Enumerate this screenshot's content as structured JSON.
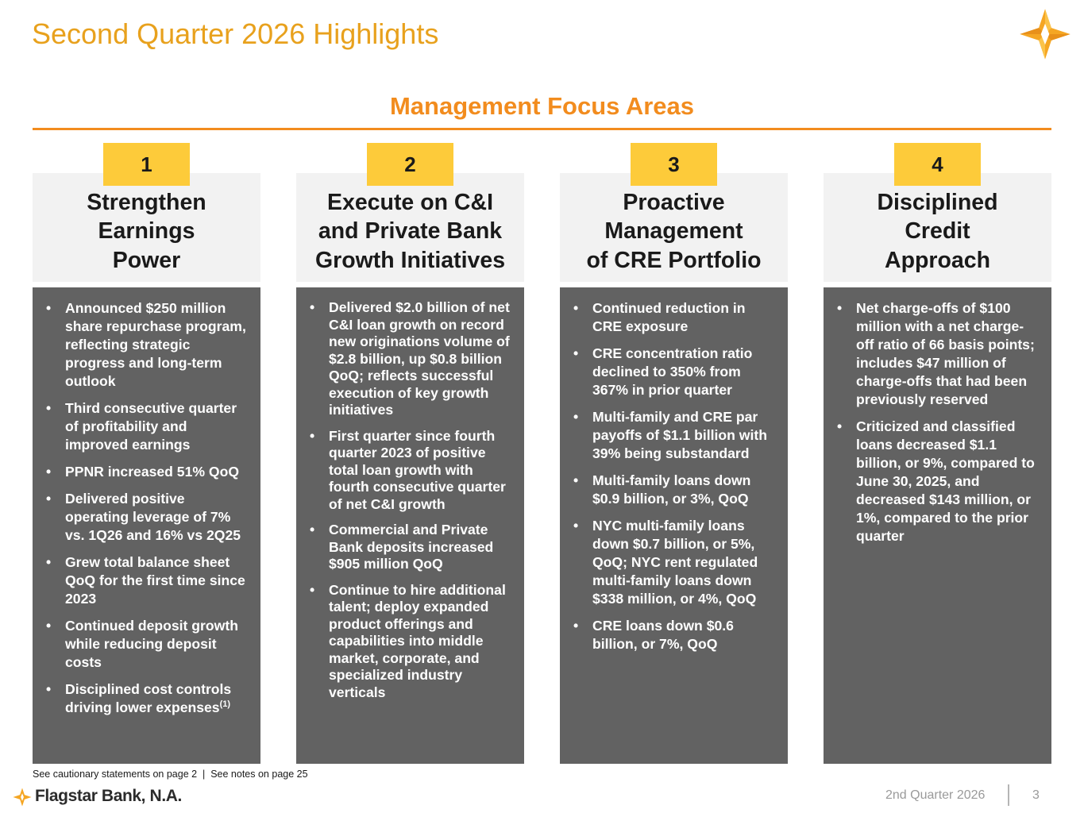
{
  "header": {
    "title": "Second Quarter 2026 Highlights"
  },
  "section": {
    "title": "Management Focus Areas"
  },
  "columns": [
    {
      "number": "1",
      "heading": "Strengthen\nEarnings\nPower",
      "bullets": [
        "Announced $250 million share repurchase program, reflecting strategic progress and long-term outlook",
        "Third consecutive quarter of profitability and improved earnings",
        "PPNR increased 51% QoQ",
        "Delivered positive operating leverage of 7% vs. 1Q26 and 16% vs 2Q25",
        "Grew total balance sheet QoQ for the first time since 2023",
        "Continued deposit growth while reducing deposit costs",
        "Disciplined cost controls driving lower expenses"
      ],
      "last_bullet_footnote": "(1)"
    },
    {
      "number": "2",
      "heading": "Execute on C&I\nand Private Bank\nGrowth Initiatives",
      "bullets": [
        "Delivered $2.0 billion of net C&I loan growth on record new originations volume of $2.8 billion, up $0.8 billion QoQ; reflects successful execution of key growth initiatives",
        "First quarter since fourth quarter 2023 of positive total loan growth with fourth consecutive quarter of net C&I growth",
        "Commercial and Private Bank deposits increased $905 million QoQ",
        "Continue to hire additional talent; deploy expanded product offerings and capabilities into middle market, corporate, and specialized industry verticals"
      ]
    },
    {
      "number": "3",
      "heading": "Proactive\nManagement\nof CRE Portfolio",
      "bullets": [
        "Continued reduction in CRE exposure",
        "CRE concentration ratio declined to 350% from 367% in prior quarter",
        "Multi-family and CRE par payoffs of $1.1 billion with 39% being substandard",
        "Multi-family loans down $0.9 billion, or 3%, QoQ",
        "NYC multi-family loans down $0.7 billion, or 5%, QoQ; NYC rent regulated multi-family loans down $338 million, or 4%, QoQ",
        "CRE loans down $0.6 billion, or 7%, QoQ"
      ]
    },
    {
      "number": "4",
      "heading": "Disciplined\nCredit\nApproach",
      "bullets": [
        "Net charge-offs of $100 million with a net charge-off ratio of 66 basis points; includes $47 million of charge-offs that had been previously reserved",
        "Criticized and classified loans decreased $1.1 billion, or 9%, compared to June 30, 2025, and decreased $143 million, or 1%, compared to the prior quarter"
      ]
    }
  ],
  "footnote": "See cautionary statements on page 2  |  See notes on page 25",
  "footer": {
    "brand": "Flagstar Bank, N.A.",
    "period": "2nd Quarter 2026",
    "page": "3"
  },
  "colors": {
    "title": "#E8A11D",
    "accent": "#F28C1E",
    "badge": "#FDCB3A",
    "panel_head": "#F2F2F2",
    "panel_body": "#626262"
  },
  "icons": {
    "logo": "flagstar-star-logo-icon"
  }
}
